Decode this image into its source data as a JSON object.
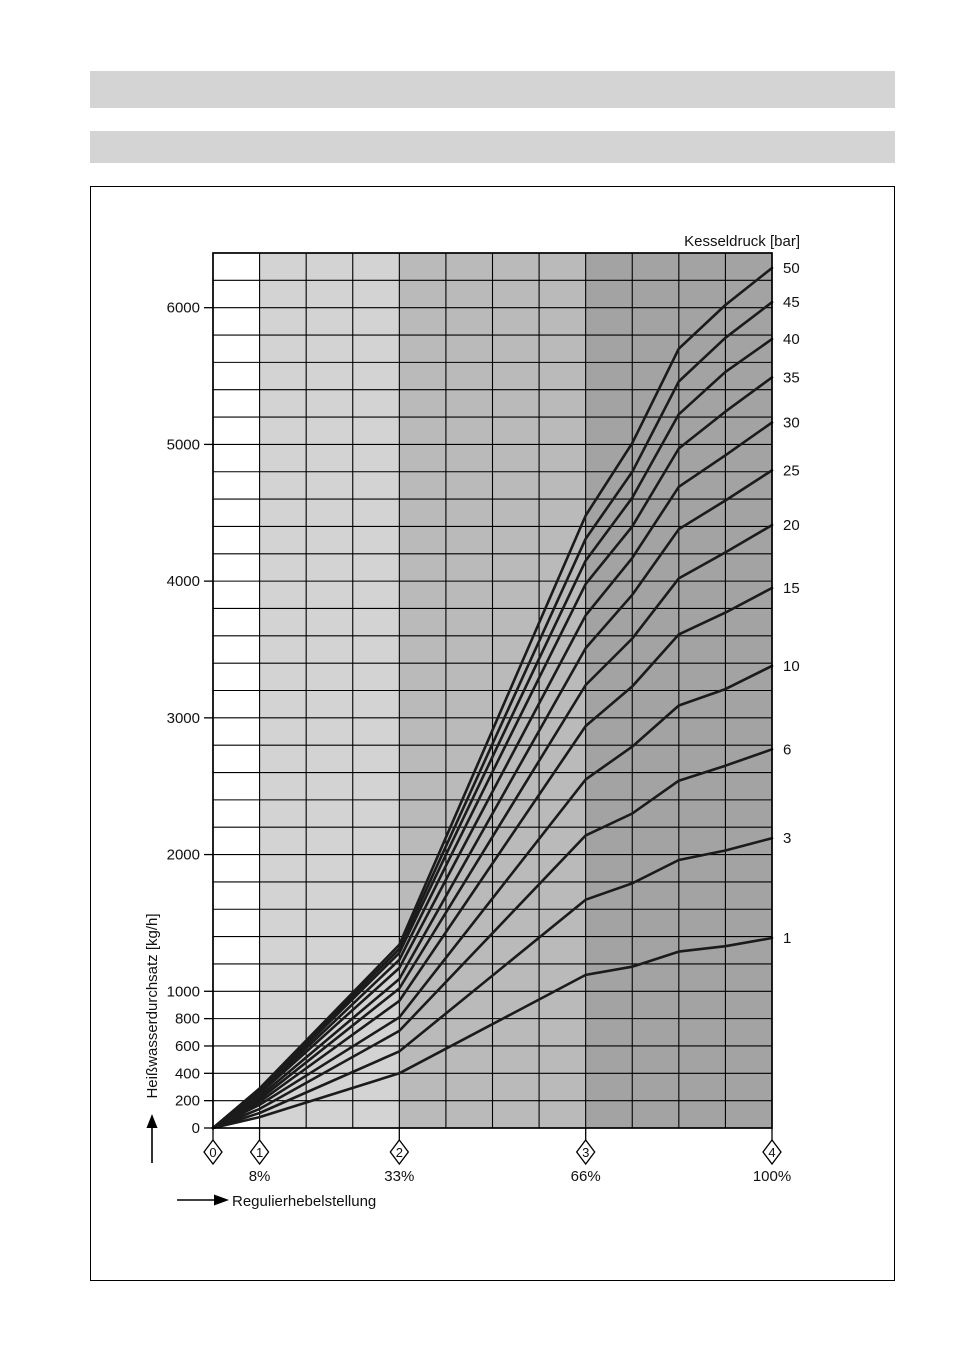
{
  "page": {
    "colors": {
      "header_bar": "#d4d4d4"
    }
  },
  "chart_data": {
    "type": "line",
    "legend_title": "Kesseldruck [bar]",
    "xlabel": "Regulierhebelstellung",
    "ylabel": "Heißwasserdurchsatz [kg/h]",
    "xlim": [
      0,
      100
    ],
    "ylim": [
      0,
      6400
    ],
    "grid": true,
    "legend_placement": "right",
    "y_ticks": [
      0,
      200,
      400,
      600,
      800,
      1000,
      2000,
      3000,
      4000,
      5000,
      6000
    ],
    "x_ticks": [
      {
        "value": 0,
        "lever": "0"
      },
      {
        "value": 8.33,
        "lever": "1",
        "label": "8%"
      },
      {
        "value": 33.33,
        "lever": "2",
        "label": "33%"
      },
      {
        "value": 66.67,
        "lever": "3",
        "label": "66%"
      },
      {
        "value": 100,
        "lever": "4",
        "label": "100%"
      }
    ],
    "bands": [
      {
        "from": 0,
        "to": 8.33,
        "color": "#ffffff"
      },
      {
        "from": 8.33,
        "to": 33.33,
        "color": "#d3d3d3"
      },
      {
        "from": 33.33,
        "to": 66.67,
        "color": "#bababa"
      },
      {
        "from": 66.67,
        "to": 100,
        "color": "#a3a3a3"
      }
    ],
    "x": [
      0,
      8.33,
      33.33,
      66.67,
      75,
      83.33,
      91.67,
      100
    ],
    "series": [
      {
        "name": "50",
        "values": [
          0,
          290,
          1340,
          4480,
          5010,
          5700,
          6020,
          6290
        ]
      },
      {
        "name": "45",
        "values": [
          0,
          280,
          1310,
          4310,
          4800,
          5460,
          5780,
          6040
        ]
      },
      {
        "name": "40",
        "values": [
          0,
          270,
          1280,
          4150,
          4610,
          5220,
          5530,
          5770
        ]
      },
      {
        "name": "35",
        "values": [
          0,
          260,
          1230,
          3980,
          4400,
          4970,
          5240,
          5490
        ]
      },
      {
        "name": "30",
        "values": [
          0,
          250,
          1170,
          3750,
          4170,
          4690,
          4920,
          5160
        ]
      },
      {
        "name": "25",
        "values": [
          0,
          230,
          1090,
          3510,
          3900,
          4380,
          4590,
          4810
        ]
      },
      {
        "name": "20",
        "values": [
          0,
          210,
          1020,
          3240,
          3580,
          4020,
          4210,
          4410
        ]
      },
      {
        "name": "15",
        "values": [
          0,
          190,
          930,
          2940,
          3230,
          3610,
          3770,
          3950
        ]
      },
      {
        "name": "10",
        "values": [
          0,
          170,
          810,
          2550,
          2790,
          3090,
          3210,
          3380
        ]
      },
      {
        "name": "6",
        "values": [
          0,
          140,
          710,
          2140,
          2300,
          2540,
          2650,
          2770
        ]
      },
      {
        "name": "3",
        "values": [
          0,
          110,
          560,
          1670,
          1790,
          1960,
          2030,
          2120
        ]
      },
      {
        "name": "1",
        "values": [
          0,
          80,
          400,
          1120,
          1180,
          1290,
          1330,
          1390
        ]
      }
    ]
  }
}
